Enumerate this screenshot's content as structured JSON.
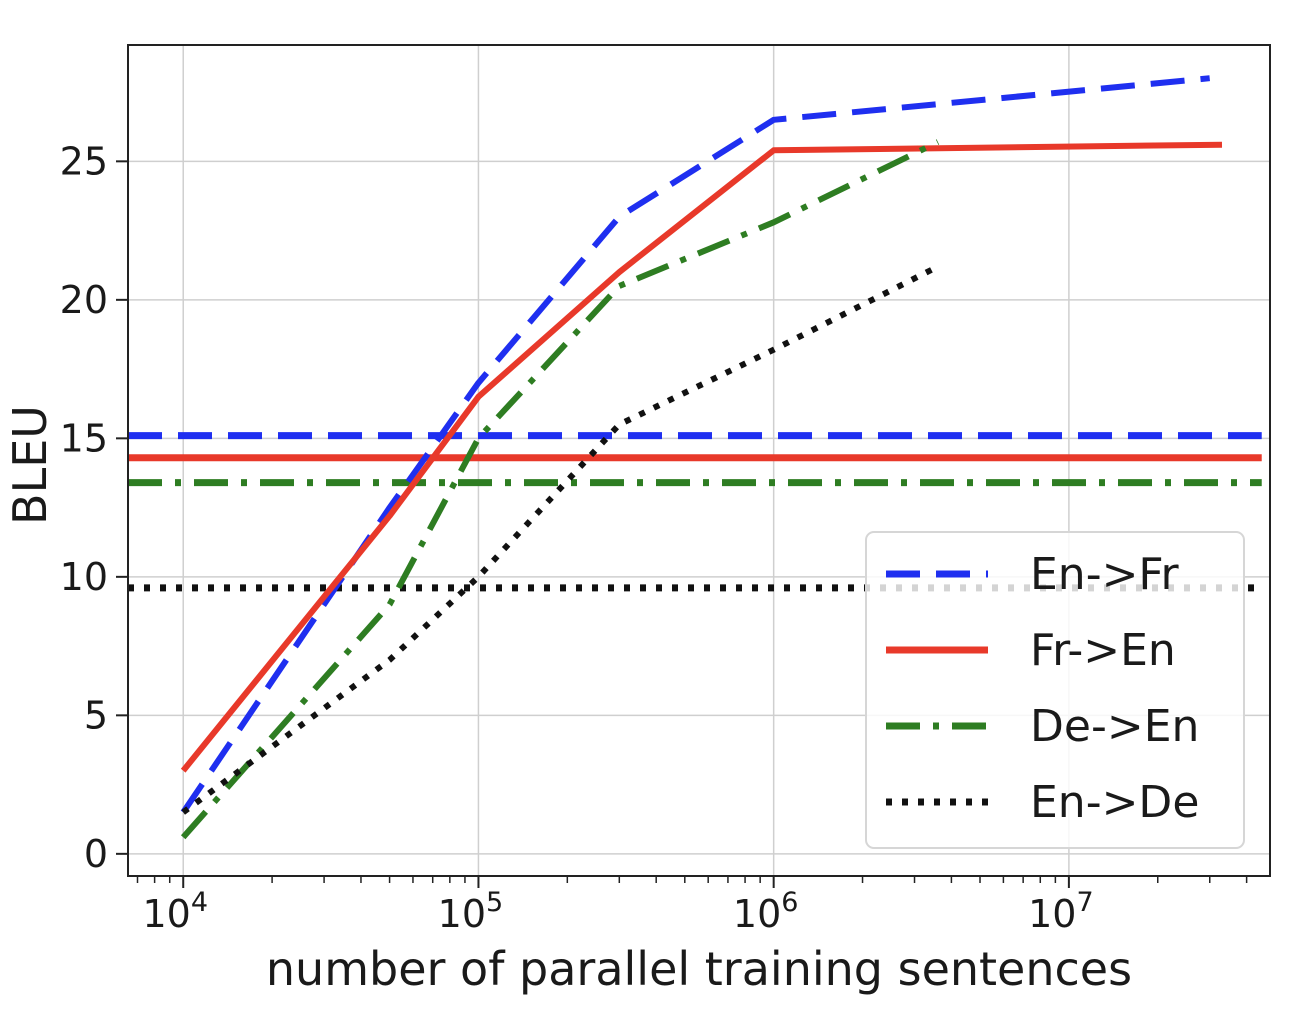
{
  "chart_data": {
    "type": "line",
    "xscale": "log",
    "xlabel": "number of parallel training sentences",
    "ylabel": "BLEU",
    "xlim": [
      6500,
      48000000
    ],
    "ylim": [
      -0.8,
      29.2
    ],
    "grid": true,
    "legend_position": "lower right",
    "x_ticks": [
      {
        "value": 10000,
        "base": "10",
        "exp": "4"
      },
      {
        "value": 100000,
        "base": "10",
        "exp": "5"
      },
      {
        "value": 1000000,
        "base": "10",
        "exp": "6"
      },
      {
        "value": 10000000,
        "base": "10",
        "exp": "7"
      }
    ],
    "y_ticks": [
      0,
      5,
      10,
      15,
      20,
      25
    ],
    "series": [
      {
        "name": "En->Fr",
        "color": "#1f2ff0",
        "style": "dashed",
        "x": [
          10000,
          50000,
          100000,
          300000,
          1000000,
          30000000
        ],
        "y": [
          1.5,
          12.5,
          17.0,
          23.0,
          26.5,
          28.0
        ],
        "baseline": 15.1
      },
      {
        "name": "Fr->En",
        "color": "#e8392a",
        "style": "solid",
        "x": [
          10000,
          50000,
          100000,
          300000,
          1000000,
          33000000
        ],
        "y": [
          3.0,
          12.2,
          16.5,
          21.0,
          25.4,
          25.6
        ],
        "baseline": 14.3
      },
      {
        "name": "De->En",
        "color": "#2e7d22",
        "style": "dashdot",
        "x": [
          10000,
          50000,
          100000,
          300000,
          1000000,
          3600000
        ],
        "y": [
          0.6,
          9.0,
          15.0,
          20.5,
          22.8,
          25.7
        ],
        "baseline": 13.4
      },
      {
        "name": "En->De",
        "color": "#111111",
        "style": "dotted",
        "x": [
          10000,
          50000,
          100000,
          300000,
          1000000,
          3600000
        ],
        "y": [
          1.5,
          7.0,
          10.0,
          15.5,
          18.2,
          21.2
        ],
        "baseline": 9.6
      }
    ]
  }
}
